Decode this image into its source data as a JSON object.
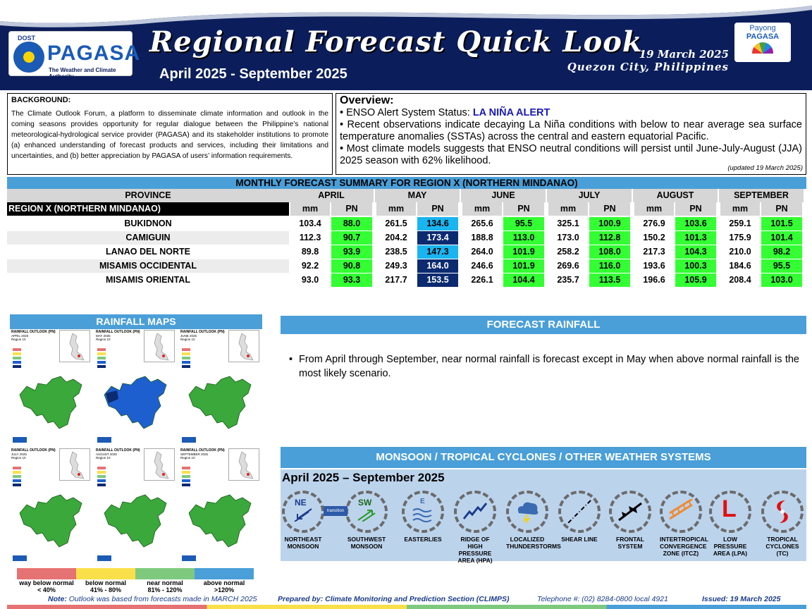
{
  "header": {
    "dost": "DOST",
    "agency": "PAGASA",
    "tagline": "The Weather and Climate Authority",
    "title": "Regional Forecast Quick Look",
    "period": "April 2025 - September 2025",
    "date": "19 March 2025",
    "place": "Quezon City, Philippines",
    "payong_1": "Payong",
    "payong_2": "PAGASA"
  },
  "background": {
    "title": "BACKGROUND:",
    "text": "The Climate Outlook Forum, a platform to disseminate climate information and outlook in the coming seasons provides opportunity for regular dialogue between the Philippine’s national meteorological-hydrological service provider (PAGASA) and its stakeholder institutions to promote (a) enhanced understanding of forecast products and services, including their limitations and uncertainties, and (b) better appreciation by PAGASA of users’ information requirements."
  },
  "overview": {
    "title": "Overview:",
    "enso_prefix": "ENSO Alert System Status: ",
    "enso_status": "LA NIÑA ALERT",
    "item2": "Recent observations indicate decaying La Niña conditions with below to near average sea surface temperature anomalies  (SSTAs) across the central and eastern equatorial Pacific.",
    "item3": "Most climate models suggests that ENSO neutral conditions will persist until June-July-August (JJA) 2025 season with 62% likelihood.",
    "updated": "(updated 19 March 2025)"
  },
  "table": {
    "title": "MONTHLY FORECAST SUMMARY FOR REGION X (NORTHERN MINDANAO)",
    "province_header": "PROVINCE",
    "region_label": "REGION X (NORTHERN MINDANAO)",
    "months": [
      "APRIL",
      "MAY",
      "JUNE",
      "JULY",
      "AUGUST",
      "SEPTEMBER"
    ],
    "mm_label": "mm",
    "pn_label": "PN",
    "rows": [
      {
        "name": "BUKIDNON",
        "vals": [
          [
            "103.4",
            "88.0"
          ],
          [
            "261.5",
            "134.6"
          ],
          [
            "265.6",
            "95.5"
          ],
          [
            "325.1",
            "100.9"
          ],
          [
            "276.9",
            "103.6"
          ],
          [
            "259.1",
            "101.5"
          ]
        ]
      },
      {
        "name": "CAMIGUIN",
        "vals": [
          [
            "112.3",
            "90.7"
          ],
          [
            "204.2",
            "173.4"
          ],
          [
            "188.8",
            "113.0"
          ],
          [
            "173.0",
            "112.8"
          ],
          [
            "150.2",
            "101.3"
          ],
          [
            "175.9",
            "101.4"
          ]
        ]
      },
      {
        "name": "LANAO DEL NORTE",
        "vals": [
          [
            "89.8",
            "93.9"
          ],
          [
            "238.5",
            "147.3"
          ],
          [
            "264.0",
            "101.9"
          ],
          [
            "258.2",
            "108.0"
          ],
          [
            "217.3",
            "104.3"
          ],
          [
            "210.0",
            "98.2"
          ]
        ]
      },
      {
        "name": "MISAMIS OCCIDENTAL",
        "vals": [
          [
            "92.2",
            "90.8"
          ],
          [
            "249.3",
            "164.0"
          ],
          [
            "246.6",
            "101.9"
          ],
          [
            "269.6",
            "116.0"
          ],
          [
            "193.6",
            "100.3"
          ],
          [
            "184.6",
            "95.5"
          ]
        ]
      },
      {
        "name": "MISAMIS ORIENTAL",
        "vals": [
          [
            "93.0",
            "93.3"
          ],
          [
            "217.7",
            "153.5"
          ],
          [
            "226.1",
            "104.4"
          ],
          [
            "235.7",
            "113.5"
          ],
          [
            "196.6",
            "105.9"
          ],
          [
            "208.4",
            "103.0"
          ]
        ]
      }
    ],
    "colors": {
      "near_normal": "#33ff33",
      "above_normal_light": "#19b5f0",
      "above_normal_dark": "#0b2a70"
    }
  },
  "maps": {
    "title": "RAINFALL MAPS",
    "tiles": [
      {
        "t1": "RAINFALL OUTLOOK (PN)",
        "t2": "APRIL 2025",
        "t3": "Region 10"
      },
      {
        "t1": "RAINFALL OUTLOOK (PN)",
        "t2": "MAY 2025",
        "t3": "Region 10"
      },
      {
        "t1": "RAINFALL OUTLOOK (PN)",
        "t2": "JUNE 2025",
        "t3": "Region 10"
      },
      {
        "t1": "RAINFALL OUTLOOK (PN)",
        "t2": "JULY 2025",
        "t3": "Region 10"
      },
      {
        "t1": "RAINFALL OUTLOOK (PN)",
        "t2": "AUGUST 2025",
        "t3": "Region 10"
      },
      {
        "t1": "RAINFALL OUTLOOK (PN)",
        "t2": "SEPTEMBER 2025",
        "t3": "Region 10"
      }
    ],
    "categories": [
      {
        "label1": "way below normal",
        "label2": "< 40%",
        "color": "#e57373"
      },
      {
        "label1": "below normal",
        "label2": "41%  -  80%",
        "color": "#f9e04b"
      },
      {
        "label1": "near normal",
        "label2": "81% - 120%",
        "color": "#7ec97e"
      },
      {
        "label1": "above normal",
        "label2": ">120%",
        "color": "#4a9fd8"
      }
    ]
  },
  "forecast": {
    "title": "FORECAST RAINFALL",
    "text": "From April through September, near normal rainfall is forecast except in May when above normal rainfall is the most likely scenario."
  },
  "monsoon": {
    "title": "MONSOON / TROPICAL CYCLONES / OTHER WEATHER SYSTEMS",
    "period": "April 2025 – September 2025",
    "transition": "transition",
    "systems": [
      {
        "label": "NORTHEAST MONSOON",
        "glyph": "NE",
        "icon": "northeast-monsoon-icon"
      },
      {
        "label": "SOUTHWEST MONSOON",
        "glyph": "SW",
        "icon": "southwest-monsoon-icon"
      },
      {
        "label": "EASTERLIES",
        "glyph": "E",
        "icon": "easterlies-icon"
      },
      {
        "label": "RIDGE OF HIGH PRESSURE AREA (HPA)",
        "glyph": "",
        "icon": "ridge-icon"
      },
      {
        "label": "LOCALIZED THUNDERSTORMS",
        "glyph": "",
        "icon": "thunderstorm-icon"
      },
      {
        "label": "SHEAR LINE",
        "glyph": "",
        "icon": "shear-line-icon"
      },
      {
        "label": "FRONTAL SYSTEM",
        "glyph": "",
        "icon": "frontal-system-icon"
      },
      {
        "label": "INTERTROPICAL CONVERGENCE ZONE (ITCZ)",
        "glyph": "",
        "icon": "itcz-icon"
      },
      {
        "label": "LOW PRESSURE AREA (LPA)",
        "glyph": "L",
        "icon": "lpa-icon"
      },
      {
        "label": "TROPICAL CYCLONES (TC)",
        "glyph": "",
        "icon": "tropical-cyclone-icon"
      }
    ]
  },
  "footer": {
    "note_label": "Note:",
    "note_text": "Outlook was based from forecasts made in MARCH 2025",
    "prepared": "Prepared by: Climate Monitoring and Prediction Section (CLIMPS)",
    "telephone": "Telephone #: (02) 8284-0800 local 4921",
    "issued": "Issued: 19 March 2025"
  }
}
